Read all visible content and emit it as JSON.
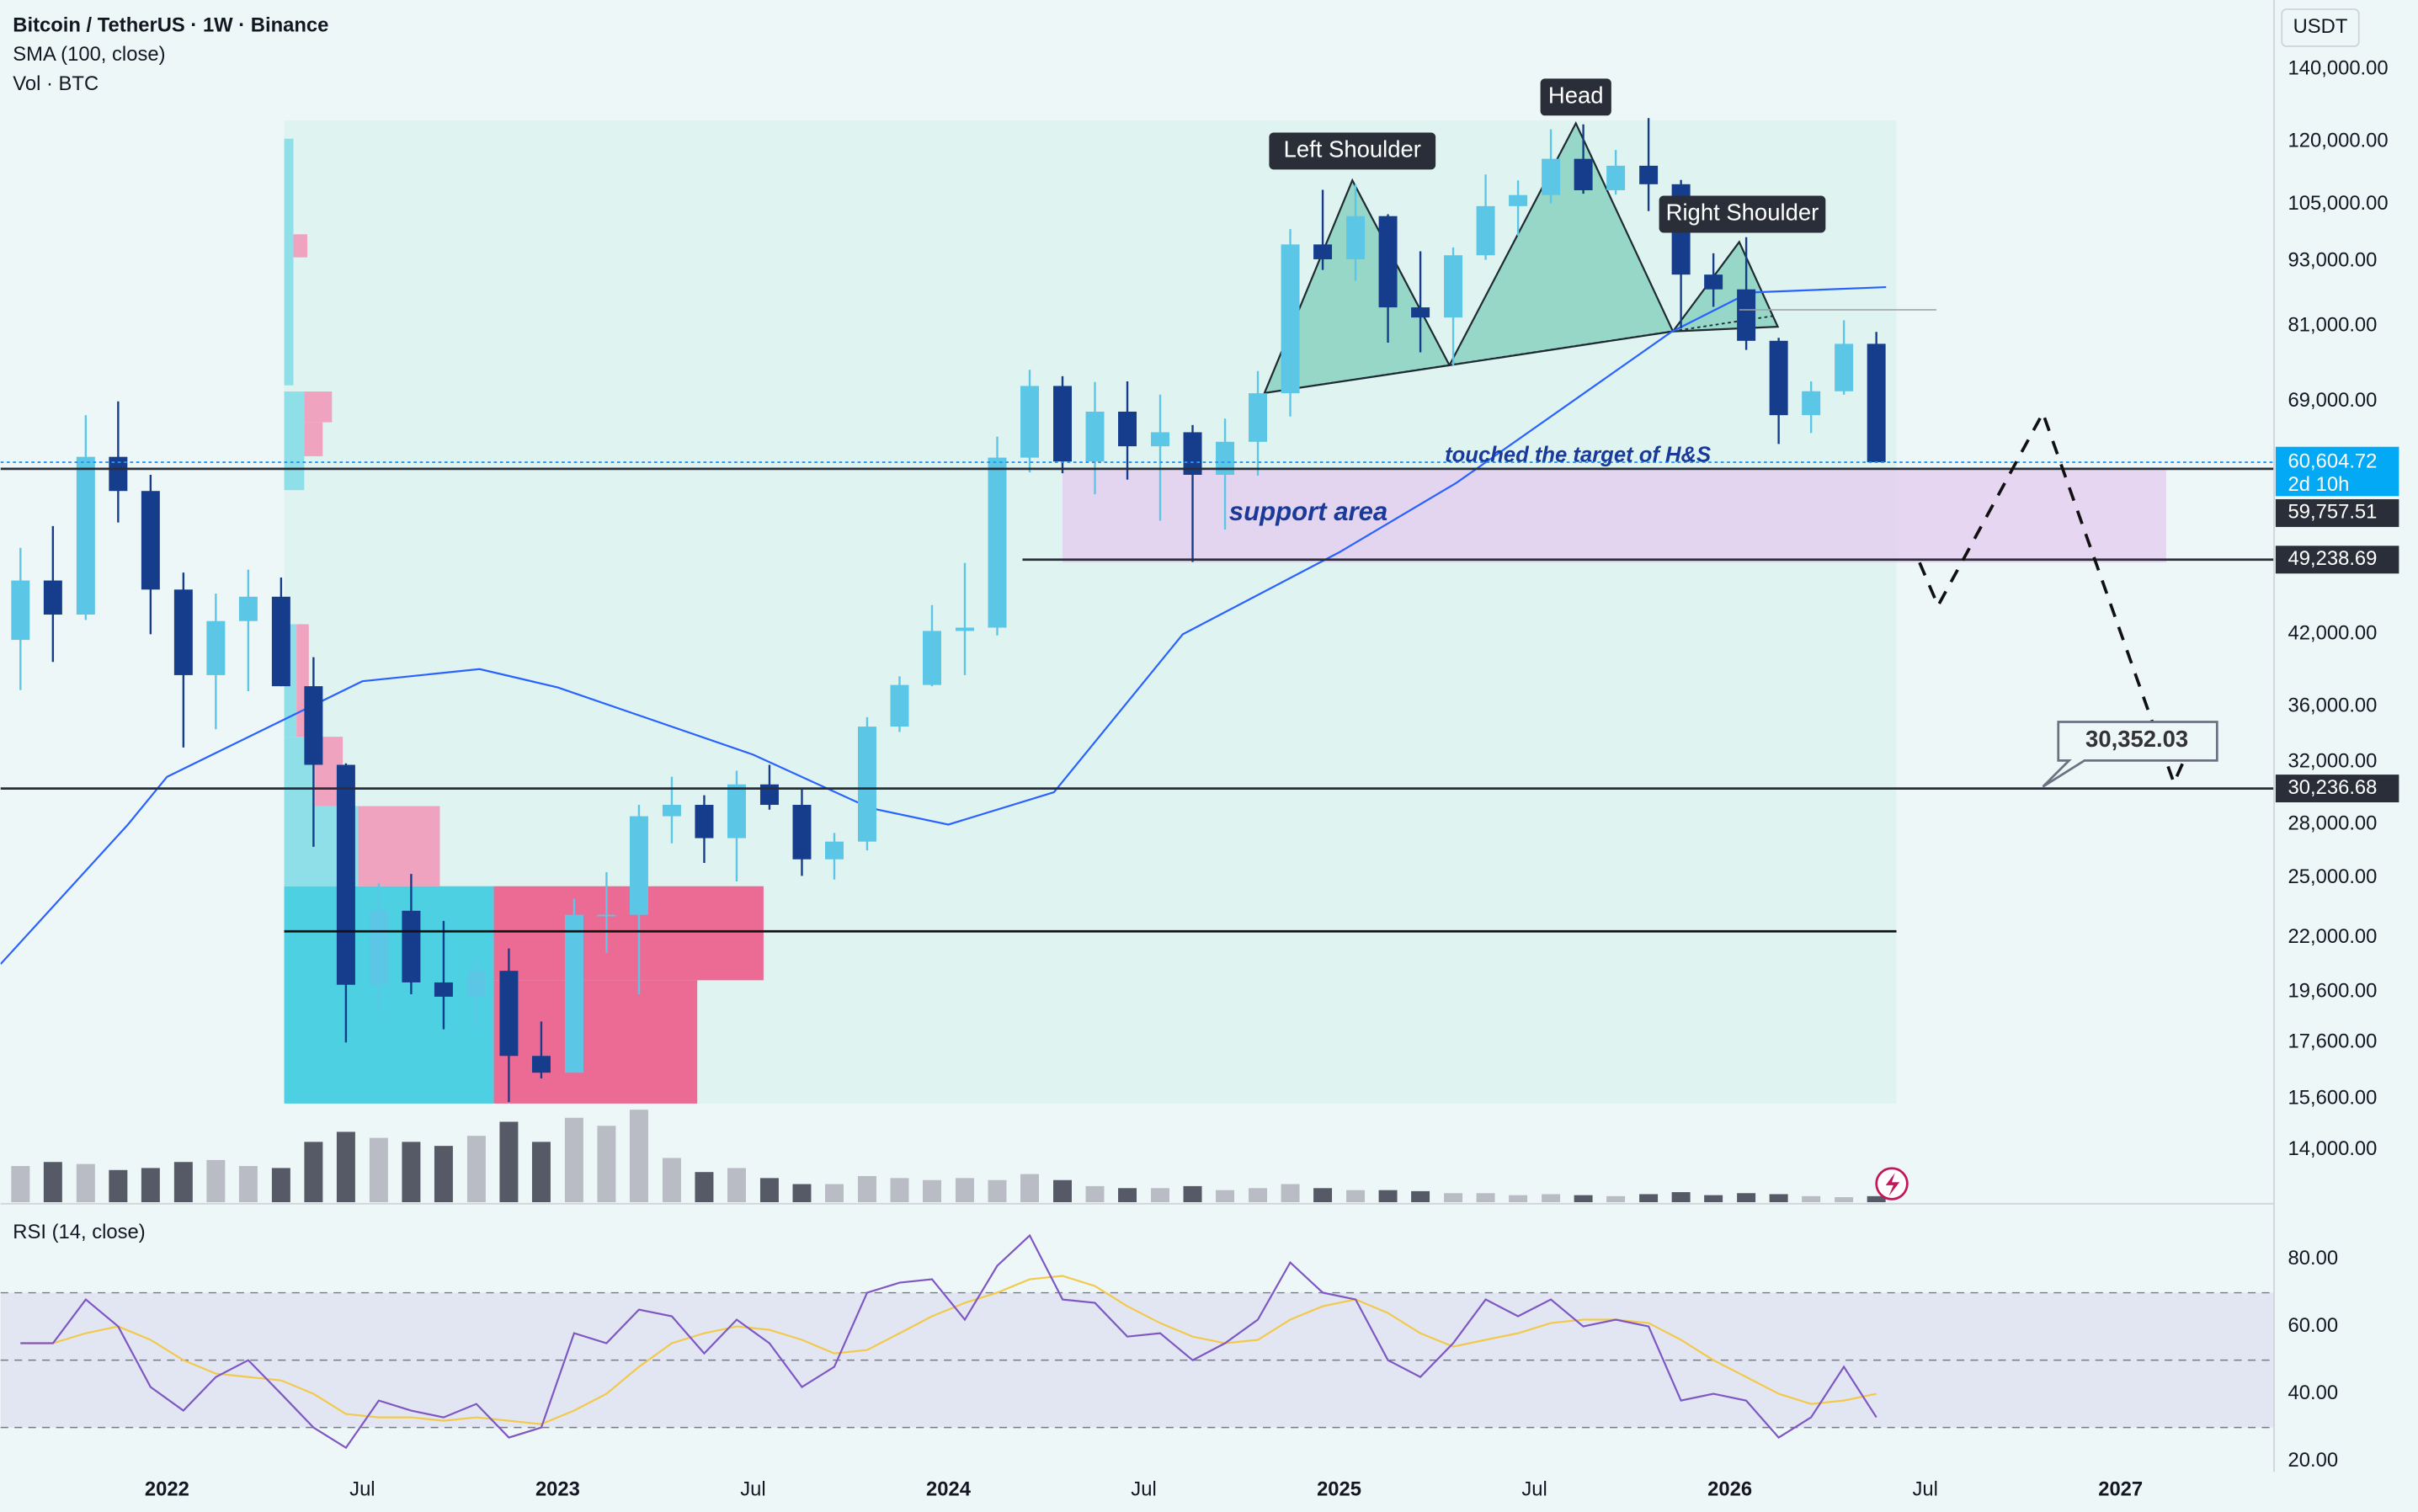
{
  "chart_data": {
    "type": "candlestick",
    "title": "Bitcoin / TetherUS · 1W · Binance",
    "indicator_label": "Vol · BTC",
    "currency": "USDT",
    "log_scale": true,
    "grid": false,
    "up_color": "#5cc6e6",
    "down_color": "#163c8c",
    "xlim": [
      2021.574,
      2027.393
    ],
    "xticks": [
      {
        "value": 2022,
        "label": "2022"
      },
      {
        "value": 2022.5,
        "label": "Jul"
      },
      {
        "value": 2023,
        "label": "2023"
      },
      {
        "value": 2023.5,
        "label": "Jul"
      },
      {
        "value": 2024,
        "label": "2024"
      },
      {
        "value": 2024.5,
        "label": "Jul"
      },
      {
        "value": 2025,
        "label": "2025"
      },
      {
        "value": 2025.5,
        "label": "Jul"
      },
      {
        "value": 2026,
        "label": "2026"
      },
      {
        "value": 2026.5,
        "label": "Jul"
      },
      {
        "value": 2027,
        "label": "2027"
      }
    ],
    "ylim": [
      12520,
      162300
    ],
    "yticks": [
      {
        "value": 140000,
        "label": "140,000.00"
      },
      {
        "value": 120000,
        "label": "120,000.00"
      },
      {
        "value": 105000,
        "label": "105,000.00"
      },
      {
        "value": 93000,
        "label": "93,000.00"
      },
      {
        "value": 81000,
        "label": "81,000.00"
      },
      {
        "value": 69000,
        "label": "69,000.00"
      },
      {
        "value": 42000,
        "label": "42,000.00"
      },
      {
        "value": 36000,
        "label": "36,000.00"
      },
      {
        "value": 32000,
        "label": "32,000.00"
      },
      {
        "value": 28000,
        "label": "28,000.00"
      },
      {
        "value": 25000,
        "label": "25,000.00"
      },
      {
        "value": 22000,
        "label": "22,000.00"
      },
      {
        "value": 19600,
        "label": "19,600.00"
      },
      {
        "value": 17600,
        "label": "17,600.00"
      },
      {
        "value": 15600,
        "label": "15,600.00"
      },
      {
        "value": 14000,
        "label": "14,000.00"
      }
    ],
    "x": [
      2021.625,
      2021.708,
      2021.792,
      2021.875,
      2021.958,
      2022.042,
      2022.125,
      2022.208,
      2022.292,
      2022.375,
      2022.458,
      2022.542,
      2022.625,
      2022.708,
      2022.792,
      2022.875,
      2022.958,
      2023.042,
      2023.125,
      2023.208,
      2023.292,
      2023.375,
      2023.458,
      2023.542,
      2023.625,
      2023.708,
      2023.792,
      2023.875,
      2023.958,
      2024.042,
      2024.125,
      2024.208,
      2024.292,
      2024.375,
      2024.458,
      2024.542,
      2024.625,
      2024.708,
      2024.792,
      2024.875,
      2024.958,
      2025.042,
      2025.125,
      2025.208,
      2025.292,
      2025.375,
      2025.458,
      2025.542,
      2025.625,
      2025.708,
      2025.792,
      2025.875,
      2025.958,
      2026.042,
      2026.125,
      2026.208,
      2026.292,
      2026.375
    ],
    "open": [
      41500,
      47100,
      43800,
      61300,
      57000,
      46200,
      38500,
      43200,
      45500,
      37600,
      31800,
      19900,
      23300,
      20000,
      19400,
      20500,
      17100,
      16500,
      23100,
      23100,
      28500,
      29200,
      27200,
      30500,
      29200,
      26000,
      27000,
      34500,
      37700,
      42300,
      42600,
      61200,
      71300,
      60700,
      67500,
      62700,
      64600,
      59000,
      63300,
      70200,
      96400,
      93400,
      102400,
      84300,
      82500,
      94200,
      104600,
      107100,
      115700,
      108200,
      114000,
      109600,
      90400,
      87600,
      78500,
      67000,
      70500,
      78000
    ],
    "high": [
      50500,
      52900,
      67000,
      69000,
      59000,
      47900,
      45800,
      48200,
      47400,
      40000,
      31900,
      24700,
      25200,
      22800,
      21000,
      21500,
      18400,
      23900,
      25300,
      29200,
      31000,
      29800,
      31400,
      31800,
      30200,
      27500,
      35200,
      38400,
      44700,
      48900,
      64000,
      73800,
      72800,
      71900,
      72000,
      70000,
      65600,
      66500,
      73600,
      99600,
      108300,
      109600,
      102800,
      95000,
      95800,
      111900,
      110500,
      123200,
      124500,
      117900,
      126200,
      110600,
      94600,
      97900,
      79000,
      72000,
      82000,
      80000
    ],
    "low": [
      37300,
      39600,
      43300,
      53300,
      42000,
      33000,
      34300,
      37200,
      37600,
      26700,
      17600,
      18800,
      19500,
      18100,
      18200,
      15500,
      16300,
      16500,
      21300,
      19500,
      26900,
      25800,
      24800,
      28900,
      25100,
      24900,
      26500,
      34100,
      37600,
      38500,
      41900,
      59300,
      59200,
      56600,
      58400,
      53500,
      49000,
      52500,
      58900,
      66800,
      91300,
      89200,
      78200,
      76600,
      74500,
      93300,
      98200,
      105200,
      107400,
      107200,
      103500,
      80600,
      84400,
      77000,
      63000,
      64500,
      70000,
      60500
    ],
    "close": [
      47100,
      43800,
      61300,
      57000,
      46200,
      38500,
      43200,
      45500,
      37600,
      31800,
      19900,
      23300,
      20000,
      19400,
      20500,
      17100,
      16500,
      23100,
      23100,
      28500,
      29200,
      27200,
      30500,
      29200,
      26000,
      27000,
      34500,
      37700,
      42300,
      42600,
      61200,
      71300,
      60700,
      67500,
      62700,
      64600,
      59000,
      63300,
      70200,
      96400,
      93400,
      102400,
      84300,
      82500,
      94200,
      104600,
      107100,
      115700,
      108200,
      114000,
      109600,
      90400,
      87600,
      78500,
      67000,
      70500,
      78000,
      60604.72
    ],
    "volume": [
      180,
      200,
      190,
      160,
      170,
      200,
      210,
      180,
      170,
      300,
      350,
      320,
      300,
      280,
      330,
      400,
      300,
      420,
      380,
      460,
      220,
      150,
      170,
      120,
      90,
      90,
      130,
      120,
      110,
      120,
      110,
      140,
      110,
      80,
      70,
      70,
      80,
      60,
      70,
      90,
      70,
      60,
      60,
      55,
      45,
      45,
      35,
      40,
      35,
      30,
      40,
      50,
      35,
      45,
      40,
      30,
      25,
      30
    ],
    "sma": {
      "name": "SMA (100, close)",
      "color": "#2962ff",
      "x": [
        2021.574,
        2021.9,
        2022.0,
        2022.5,
        2022.8,
        2023.0,
        2023.5,
        2023.8,
        2024.0,
        2024.27,
        2024.6,
        2025.0,
        2025.3,
        2025.85,
        2026.05,
        2026.4
      ],
      "values": [
        20800,
        28000,
        31000,
        38000,
        39000,
        37500,
        32500,
        29000,
        28000,
        30000,
        42000,
        50000,
        58000,
        80000,
        87000,
        88000
      ]
    },
    "current_price": {
      "value": 60604.72,
      "label": "60,604.72",
      "countdown": "2d 10h"
    },
    "levels": [
      {
        "value": 59757.51,
        "label": "59,757.51"
      },
      {
        "value": 49238.69,
        "label": "49,238.69"
      },
      {
        "value": 30236.68,
        "label": "30,236.68"
      }
    ],
    "lines": [
      22300
    ],
    "target": {
      "value": 30352.03,
      "label": "30,352.03"
    },
    "annotations": [
      "touched the target of H&S",
      "support area"
    ],
    "pattern_labels": [
      "Left Shoulder",
      "Head",
      "Right Shoulder"
    ],
    "rsi": {
      "name": "RSI (14, close)",
      "color": "#7e57c2",
      "ma_color": "#f2c94c",
      "ylim": [
        19.1,
        92.3
      ],
      "yticks": [
        {
          "value": 80,
          "label": "80.00"
        },
        {
          "value": 60,
          "label": "60.00"
        },
        {
          "value": 40,
          "label": "40.00"
        },
        {
          "value": 20,
          "label": "20.00"
        }
      ],
      "bands": [
        70,
        50,
        30
      ],
      "values": [
        55,
        55,
        68,
        60,
        42,
        35,
        45,
        50,
        40,
        30,
        24,
        38,
        35,
        33,
        37,
        27,
        30,
        58,
        55,
        65,
        63,
        52,
        62,
        55,
        42,
        48,
        70,
        73,
        74,
        62,
        78,
        87,
        68,
        67,
        57,
        58,
        50,
        55,
        62,
        79,
        70,
        68,
        50,
        45,
        55,
        68,
        63,
        68,
        60,
        62,
        60,
        38,
        40,
        38,
        27,
        33,
        48,
        33
      ],
      "ma": [
        55,
        55,
        58,
        60,
        56,
        50,
        46,
        45,
        44,
        40,
        34,
        33,
        33,
        32,
        33,
        32,
        31,
        35,
        40,
        48,
        55,
        58,
        60,
        59,
        56,
        52,
        53,
        58,
        63,
        67,
        70,
        74,
        75,
        72,
        66,
        61,
        57,
        55,
        56,
        62,
        66,
        68,
        64,
        58,
        54,
        56,
        58,
        61,
        62,
        62,
        61,
        56,
        50,
        45,
        40,
        37,
        38,
        40
      ]
    }
  }
}
